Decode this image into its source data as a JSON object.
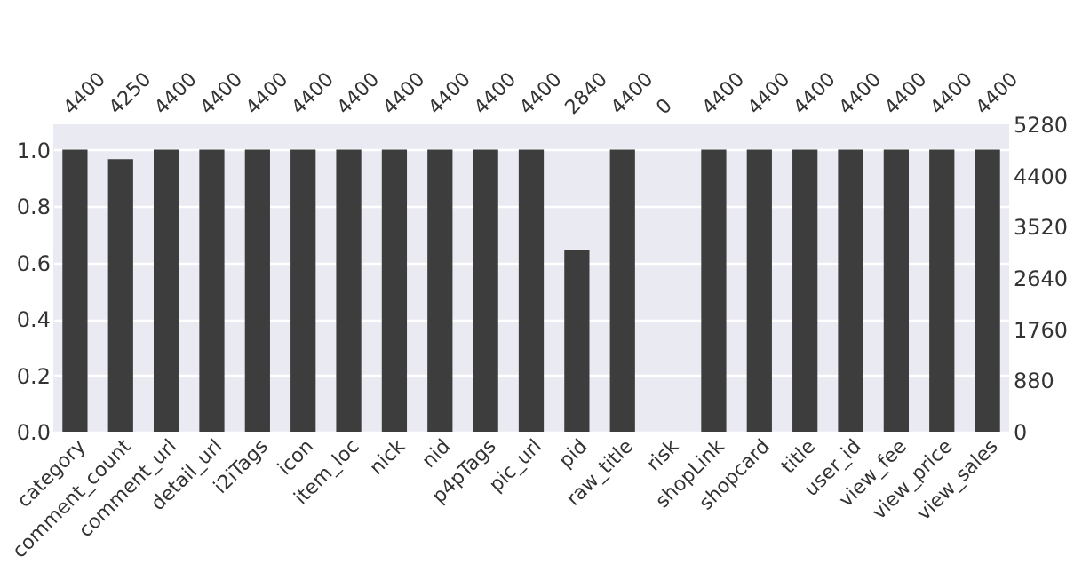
{
  "chart_data": {
    "type": "bar",
    "categories": [
      "category",
      "comment_count",
      "comment_url",
      "detail_url",
      "i2iTags",
      "icon",
      "item_loc",
      "nick",
      "nid",
      "p4pTags",
      "pic_url",
      "pid",
      "raw_title",
      "risk",
      "shopLink",
      "shopcard",
      "title",
      "user_id",
      "view_fee",
      "view_price",
      "view_sales"
    ],
    "values": [
      1,
      0.966,
      1,
      1,
      1,
      1,
      1,
      1,
      1,
      1,
      1,
      0.645,
      1,
      0,
      1,
      1,
      1,
      1,
      1,
      1,
      1
    ],
    "annotations": [
      "4400",
      "4250",
      "4400",
      "4400",
      "4400",
      "4400",
      "4400",
      "4400",
      "4400",
      "4400",
      "4400",
      "2840",
      "4400",
      "0",
      "4400",
      "4400",
      "4400",
      "4400",
      "4400",
      "4400",
      "4400"
    ],
    "color": "#3d3d3d",
    "ylim": [
      0,
      1.09
    ],
    "yticks": [
      {
        "value": 0,
        "label": "0.0"
      },
      0.2,
      0.4,
      0.6,
      0.8,
      {
        "value": 1,
        "label": "1.0"
      }
    ],
    "y2lim": [
      0,
      5280
    ],
    "y2ticks": [
      0,
      880,
      1760,
      2640,
      3520,
      4400,
      5280
    ],
    "grid": "y"
  }
}
